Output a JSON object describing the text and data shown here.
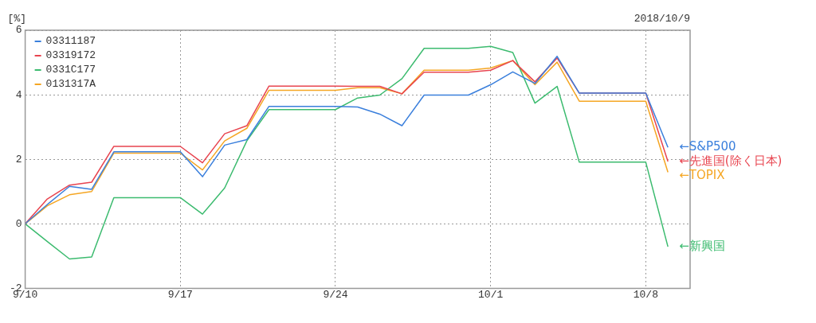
{
  "chart_data": {
    "type": "line",
    "ylabel": "[%]",
    "subtitle": "2018/10/9",
    "x": [
      "2018-09-10",
      "2018-09-11",
      "2018-09-12",
      "2018-09-13",
      "2018-09-14",
      "2018-09-17",
      "2018-09-18",
      "2018-09-19",
      "2018-09-20",
      "2018-09-21",
      "2018-09-24",
      "2018-09-25",
      "2018-09-26",
      "2018-09-27",
      "2018-09-28",
      "2018-09-30",
      "2018-10-01",
      "2018-10-02",
      "2018-10-03",
      "2018-10-04",
      "2018-10-05",
      "2018-10-08",
      "2018-10-09"
    ],
    "series": [
      {
        "name": "03311187",
        "color": "#3a7fdc",
        "values": [
          0,
          0.6,
          1.16,
          1.07,
          2.23,
          2.23,
          1.46,
          2.44,
          2.61,
          3.64,
          3.64,
          3.62,
          3.4,
          3.04,
          3.99,
          3.99,
          4.31,
          4.71,
          4.35,
          5.19,
          4.05,
          4.05,
          2.37
        ]
      },
      {
        "name": "03319172",
        "color": "#e8444f",
        "values": [
          0,
          0.77,
          1.2,
          1.29,
          2.4,
          2.4,
          1.89,
          2.79,
          3.04,
          4.27,
          4.27,
          4.26,
          4.26,
          4.03,
          4.7,
          4.7,
          4.76,
          5.06,
          4.4,
          5.14,
          4.05,
          4.05,
          1.93
        ]
      },
      {
        "name": "0331C177",
        "color": "#3cbb6f",
        "values": [
          0,
          -0.55,
          -1.09,
          -1.03,
          0.81,
          0.81,
          0.3,
          1.11,
          2.57,
          3.54,
          3.54,
          3.9,
          3.99,
          4.5,
          5.44,
          5.44,
          5.5,
          5.31,
          3.74,
          4.26,
          1.91,
          1.91,
          -0.71
        ]
      },
      {
        "name": "0131317A",
        "color": "#f5a623",
        "values": [
          0,
          0.56,
          0.9,
          1.0,
          2.19,
          2.19,
          1.67,
          2.57,
          2.96,
          4.14,
          4.14,
          4.22,
          4.22,
          4.03,
          4.76,
          4.76,
          4.83,
          5.06,
          4.31,
          5.01,
          3.8,
          3.8,
          1.6
        ]
      }
    ],
    "xlim": [
      "2018-09-10",
      "2018-10-10"
    ],
    "xticks": [
      {
        "value": "2018-09-10",
        "label": "9/10"
      },
      {
        "value": "2018-09-17",
        "label": "9/17"
      },
      {
        "value": "2018-09-24",
        "label": "9/24"
      },
      {
        "value": "2018-10-01",
        "label": "10/1"
      },
      {
        "value": "2018-10-08",
        "label": "10/8"
      }
    ],
    "ylim": [
      -2,
      6
    ],
    "yticks": [
      -2,
      0,
      2,
      4,
      6
    ],
    "grid": true,
    "legend": "top left",
    "marker": "none",
    "line_style": "solid",
    "annotations": [
      {
        "text": "←S&P500",
        "x": "2018-10-09",
        "y": 2.37
      },
      {
        "text": "←先進国(除く日本)",
        "x": "2018-10-09",
        "y": 1.93
      },
      {
        "text": "←TOPIX",
        "x": "2018-10-09",
        "y": 1.6
      },
      {
        "text": "←新興国",
        "x": "2018-10-09",
        "y": -0.71
      }
    ]
  }
}
